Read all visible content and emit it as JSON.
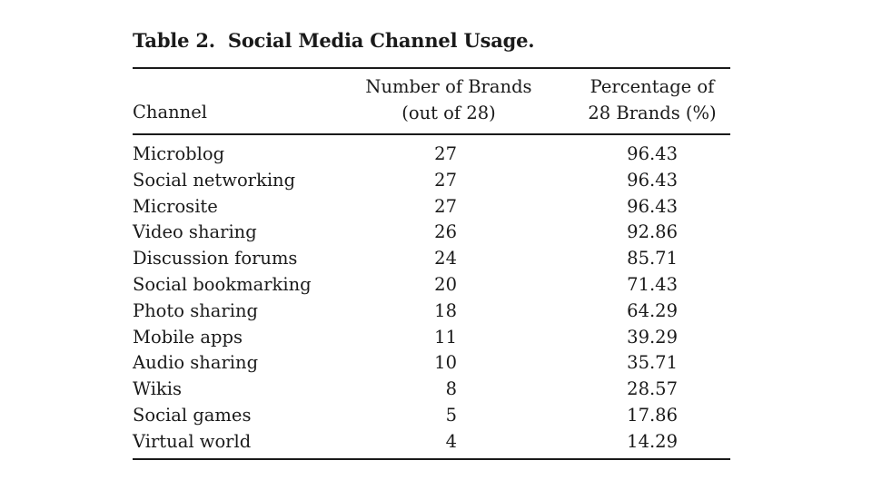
{
  "table": {
    "label": "Table 2.",
    "caption": "Social Media Channel Usage.",
    "headers": {
      "channel": "Channel",
      "count_line1": "Number of Brands",
      "count_line2": "(out of 28)",
      "pct_line1": "Percentage of",
      "pct_line2": "28 Brands (%)"
    },
    "rows": [
      {
        "channel": "Microblog",
        "count": "27",
        "pct": "96.43"
      },
      {
        "channel": "Social networking",
        "count": "27",
        "pct": "96.43"
      },
      {
        "channel": "Microsite",
        "count": "27",
        "pct": "96.43"
      },
      {
        "channel": "Video sharing",
        "count": "26",
        "pct": "92.86"
      },
      {
        "channel": "Discussion forums",
        "count": "24",
        "pct": "85.71"
      },
      {
        "channel": "Social bookmarking",
        "count": "20",
        "pct": "71.43"
      },
      {
        "channel": "Photo sharing",
        "count": "18",
        "pct": "64.29"
      },
      {
        "channel": "Mobile apps",
        "count": "11",
        "pct": "39.29"
      },
      {
        "channel": "Audio sharing",
        "count": "10",
        "pct": "35.71"
      },
      {
        "channel": "Wikis",
        "count": "8",
        "pct": "28.57"
      },
      {
        "channel": "Social games",
        "count": "5",
        "pct": "17.86"
      },
      {
        "channel": "Virtual world",
        "count": "4",
        "pct": "14.29"
      }
    ]
  }
}
